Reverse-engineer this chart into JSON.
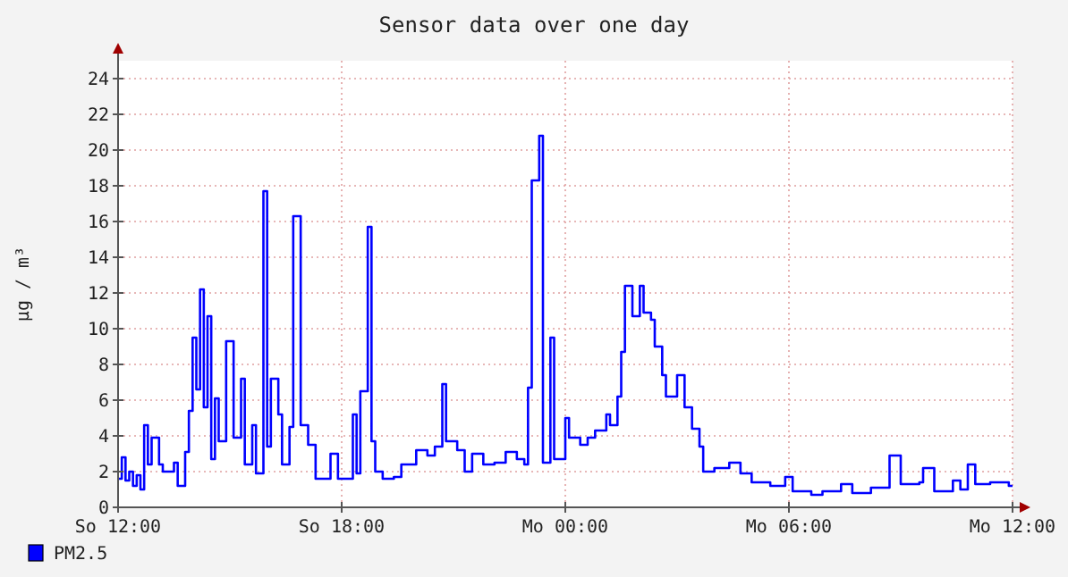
{
  "chart_data": {
    "type": "step",
    "title": "Sensor data over one day",
    "ylabel": "µg / m³",
    "categories": [
      "So 12:00",
      null,
      null,
      null,
      null,
      null,
      null,
      null,
      null,
      null,
      null,
      null,
      null,
      null,
      null,
      null,
      null,
      null,
      null,
      null,
      null,
      null,
      null,
      null,
      null,
      null,
      null,
      null,
      null,
      null,
      null,
      null,
      null,
      null,
      null,
      null,
      null,
      null,
      null,
      null,
      null,
      null,
      null,
      null,
      null,
      null,
      null,
      null,
      null,
      null,
      null,
      null,
      null,
      null,
      null,
      null,
      null,
      null,
      null,
      null,
      "So 18:00",
      null,
      null,
      null,
      null,
      null,
      null,
      null,
      null,
      null,
      null,
      null,
      null,
      null,
      null,
      null,
      null,
      null,
      null,
      null,
      null,
      null,
      null,
      null,
      null,
      null,
      null,
      null,
      null,
      null,
      null,
      null,
      null,
      null,
      null,
      null,
      null,
      null,
      null,
      null,
      null,
      null,
      null,
      null,
      null,
      null,
      null,
      null,
      null,
      null,
      null,
      null,
      null,
      null,
      null,
      null,
      null,
      null,
      null,
      null,
      "Mo 00:00",
      null,
      null,
      null,
      null,
      null,
      null,
      null,
      null,
      null,
      null,
      null,
      null,
      null,
      null,
      null,
      null,
      null,
      null,
      null,
      null,
      null,
      null,
      null,
      null,
      null,
      null,
      null,
      null,
      null,
      null,
      null,
      null,
      null,
      null,
      null,
      null,
      null,
      null,
      null,
      null,
      null,
      null,
      null,
      null,
      null,
      null,
      null,
      null,
      null,
      null,
      null,
      null,
      null,
      null,
      null,
      null,
      null,
      null,
      null,
      "Mo 06:00",
      null,
      null,
      null,
      null,
      null,
      null,
      null,
      null,
      null,
      null,
      null,
      null,
      null,
      null,
      null,
      null,
      null,
      null,
      null,
      null,
      null,
      null,
      null,
      null,
      null,
      null,
      null,
      null,
      null,
      null,
      null,
      null,
      null,
      null,
      null,
      null,
      null,
      null,
      null,
      null,
      null,
      null,
      null,
      null,
      null,
      null,
      null,
      null,
      null,
      null,
      null,
      null,
      null,
      null,
      null,
      null,
      null,
      null,
      null,
      "Mo 12:00"
    ],
    "ylim": [
      0,
      25
    ],
    "yticks": [
      0,
      2,
      4,
      6,
      8,
      10,
      12,
      14,
      16,
      18,
      20,
      22,
      24
    ],
    "grid": true,
    "legend": "bottom left",
    "marker": "none",
    "line_style": "solid",
    "series": [
      {
        "name": "PM2.5",
        "color": "#0000ff",
        "values": [
          1.6,
          2.8,
          1.5,
          2.0,
          1.2,
          1.8,
          1.0,
          4.6,
          2.4,
          3.9,
          3.9,
          2.4,
          2.0,
          2.0,
          2.0,
          2.5,
          1.2,
          1.2,
          3.1,
          5.4,
          9.5,
          6.6,
          12.2,
          5.6,
          10.7,
          2.7,
          6.1,
          3.7,
          3.7,
          9.3,
          9.3,
          3.9,
          3.9,
          7.2,
          2.4,
          2.4,
          4.6,
          1.9,
          1.9,
          17.7,
          3.4,
          7.2,
          7.2,
          5.2,
          2.4,
          2.4,
          4.5,
          16.3,
          16.3,
          4.6,
          4.6,
          3.5,
          3.5,
          1.6,
          1.6,
          1.6,
          1.6,
          3.0,
          3.0,
          1.6,
          1.6,
          1.6,
          1.6,
          5.2,
          1.9,
          6.5,
          6.5,
          15.7,
          3.7,
          2.0,
          2.0,
          1.6,
          1.6,
          1.6,
          1.7,
          1.7,
          2.4,
          2.4,
          2.4,
          2.4,
          3.2,
          3.2,
          3.2,
          2.9,
          2.9,
          3.4,
          3.4,
          6.9,
          3.7,
          3.7,
          3.7,
          3.2,
          3.2,
          2.0,
          2.0,
          3.0,
          3.0,
          3.0,
          2.4,
          2.4,
          2.4,
          2.5,
          2.5,
          2.5,
          3.1,
          3.1,
          3.1,
          2.7,
          2.7,
          2.4,
          6.7,
          18.3,
          18.3,
          20.8,
          2.5,
          2.5,
          9.5,
          2.7,
          2.7,
          2.7,
          5.0,
          3.9,
          3.9,
          3.9,
          3.5,
          3.5,
          3.9,
          3.9,
          4.3,
          4.3,
          4.3,
          5.2,
          4.6,
          4.6,
          6.2,
          8.7,
          12.4,
          12.4,
          10.7,
          10.7,
          12.4,
          10.9,
          10.9,
          10.5,
          9.0,
          9.0,
          7.4,
          6.2,
          6.2,
          6.2,
          7.4,
          7.4,
          5.6,
          5.6,
          4.4,
          4.4,
          3.4,
          2.0,
          2.0,
          2.0,
          2.2,
          2.2,
          2.2,
          2.2,
          2.5,
          2.5,
          2.5,
          1.9,
          1.9,
          1.9,
          1.4,
          1.4,
          1.4,
          1.4,
          1.4,
          1.2,
          1.2,
          1.2,
          1.2,
          1.7,
          1.7,
          0.9,
          0.9,
          0.9,
          0.9,
          0.9,
          0.7,
          0.7,
          0.7,
          0.9,
          0.9,
          0.9,
          0.9,
          0.9,
          1.3,
          1.3,
          1.3,
          0.8,
          0.8,
          0.8,
          0.8,
          0.8,
          1.1,
          1.1,
          1.1,
          1.1,
          1.1,
          2.9,
          2.9,
          2.9,
          1.3,
          1.3,
          1.3,
          1.3,
          1.3,
          1.4,
          2.2,
          2.2,
          2.2,
          0.9,
          0.9,
          0.9,
          0.9,
          0.9,
          1.5,
          1.5,
          1.0,
          1.0,
          2.4,
          2.4,
          1.3,
          1.3,
          1.3,
          1.3,
          1.4,
          1.4,
          1.4,
          1.4,
          1.4,
          1.2,
          1.2
        ]
      }
    ]
  }
}
